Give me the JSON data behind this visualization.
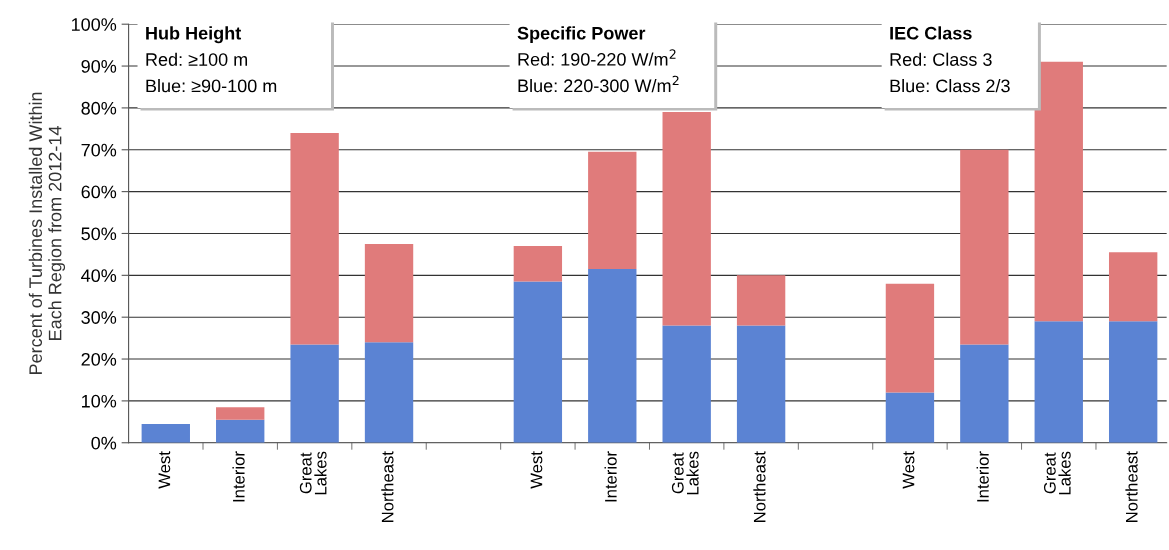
{
  "chart_data": {
    "type": "bar",
    "stacked": true,
    "ylabel": "Percent of Turbines Installed Within\nEach Region from 2012-14",
    "categories": [
      "West",
      "Interior",
      "Great\nLakes",
      "Northeast",
      null,
      "West",
      "Interior",
      "Great\nLakes",
      "Northeast",
      null,
      "West",
      "Interior",
      "Great\nLakes",
      "Northeast"
    ],
    "series": [
      {
        "color": "#5b83d3",
        "values": [
          4.5,
          5.5,
          23.5,
          24,
          null,
          38.5,
          41.5,
          28,
          28,
          null,
          12,
          23.5,
          29,
          29
        ]
      },
      {
        "color": "#e07b7b",
        "values": [
          null,
          3,
          50.5,
          23.5,
          null,
          8.5,
          28,
          51,
          12,
          null,
          26,
          46.5,
          62,
          16.5
        ]
      }
    ],
    "ylim": [
      0,
      100
    ],
    "yticks": [
      {
        "value": 0,
        "label": "0%"
      },
      {
        "value": 10,
        "label": "10%"
      },
      {
        "value": 20,
        "label": "20%"
      },
      {
        "value": 30,
        "label": "30%"
      },
      {
        "value": 40,
        "label": "40%"
      },
      {
        "value": 50,
        "label": "50%"
      },
      {
        "value": 60,
        "label": "60%"
      },
      {
        "value": 70,
        "label": "70%"
      },
      {
        "value": 80,
        "label": "80%"
      },
      {
        "value": 90,
        "label": "90%"
      },
      {
        "value": 100,
        "label": "100%"
      }
    ],
    "grid": "y",
    "annotations": [
      "Hub Height",
      "Red: ≥100 m",
      "Blue: ≥90-100 m",
      "Specific Power",
      "Red: 190-220 W/m$^{2}$",
      "Blue: 220-300 W/m$^{2}$",
      "IEC Class",
      "Red: Class 3",
      "Blue: Class 2/3"
    ]
  }
}
